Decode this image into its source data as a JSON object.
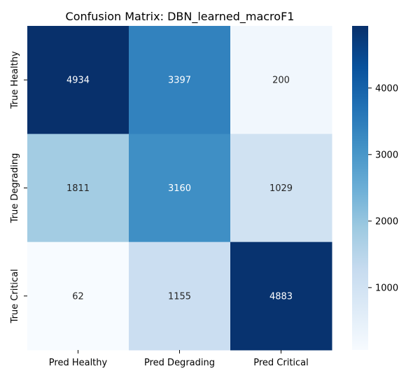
{
  "chart_data": {
    "type": "heatmap",
    "title": "Confusion Matrix: DBN_learned_macroF1",
    "x_categories": [
      "Pred Healthy",
      "Pred Degrading",
      "Pred Critical"
    ],
    "y_categories": [
      "True Healthy",
      "True Degrading",
      "True Critical"
    ],
    "values": [
      [
        4934,
        3397,
        200
      ],
      [
        1811,
        3160,
        1029
      ],
      [
        62,
        1155,
        4883
      ]
    ],
    "colorbar": {
      "colormap": "Blues",
      "min": 62,
      "max": 4934,
      "ticks": [
        1000,
        2000,
        3000,
        4000
      ]
    },
    "grid": false,
    "legend": "colorbar-right"
  }
}
